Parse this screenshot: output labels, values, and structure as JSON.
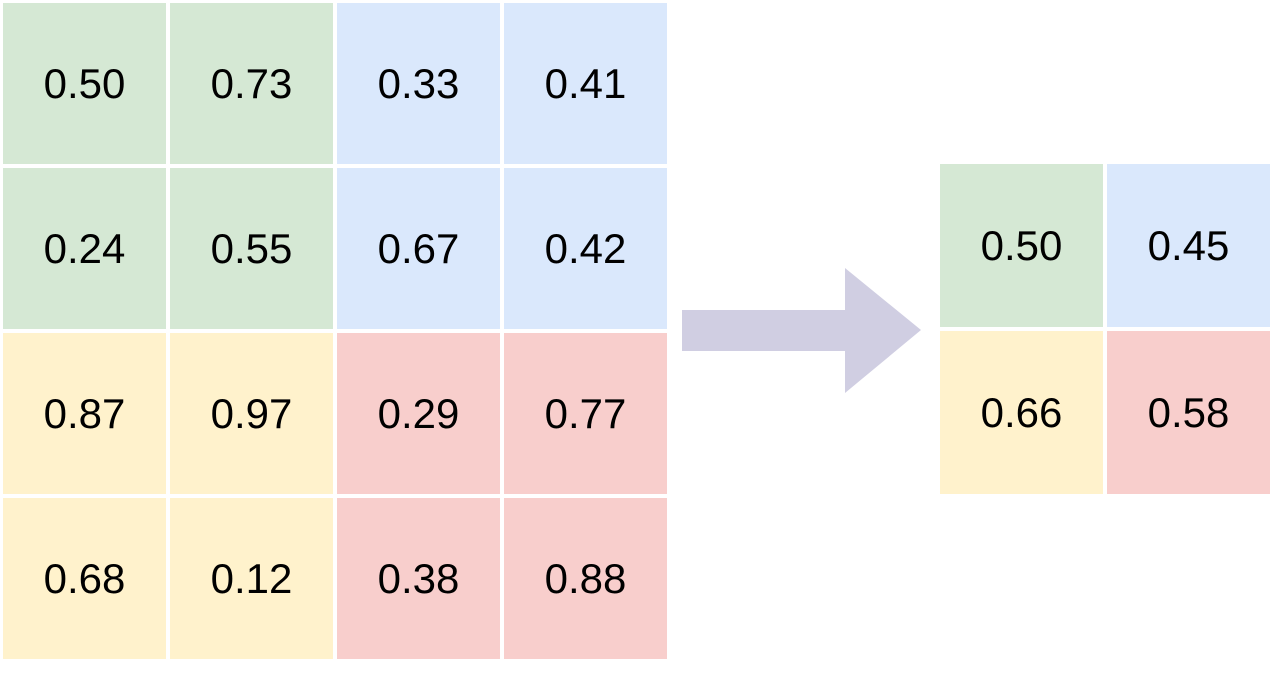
{
  "input": {
    "rows": [
      [
        "0.50",
        "0.73",
        "0.33",
        "0.41"
      ],
      [
        "0.24",
        "0.55",
        "0.67",
        "0.42"
      ],
      [
        "0.87",
        "0.97",
        "0.29",
        "0.77"
      ],
      [
        "0.68",
        "0.12",
        "0.38",
        "0.88"
      ]
    ]
  },
  "output": {
    "rows": [
      [
        "0.50",
        "0.45"
      ],
      [
        "0.66",
        "0.58"
      ]
    ]
  }
}
